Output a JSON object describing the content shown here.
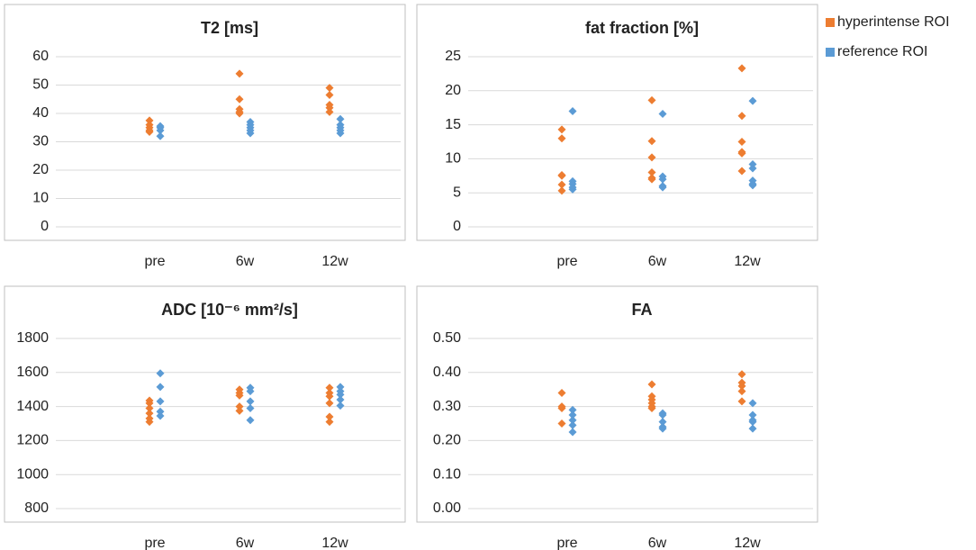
{
  "legend": [
    {
      "name": "hyperintense ROI",
      "color": "#ed7d31"
    },
    {
      "name": "reference ROI",
      "color": "#5b9bd5"
    }
  ],
  "chart_data": [
    {
      "type": "dot",
      "title": "T2 [ms]",
      "categories": [
        "pre",
        "6w",
        "12w"
      ],
      "ylim": [
        0,
        60
      ],
      "yticks": [
        0,
        10,
        20,
        30,
        40,
        50,
        60
      ],
      "grid": true,
      "series": [
        {
          "values": [
            [
              37.5,
              36,
              35,
              34,
              33.5
            ],
            [
              54,
              45,
              41.5,
              40.5,
              40
            ],
            [
              49,
              46.5,
              43,
              42,
              40.5
            ]
          ]
        },
        {
          "values": [
            [
              35.5,
              35,
              34,
              32
            ],
            [
              37,
              36,
              35,
              34,
              33
            ],
            [
              38,
              36,
              35,
              34,
              33
            ]
          ]
        }
      ]
    },
    {
      "type": "dot",
      "title": "fat fraction [%]",
      "categories": [
        "pre",
        "6w",
        "12w"
      ],
      "ylim": [
        0,
        25
      ],
      "yticks": [
        0,
        5,
        10,
        15,
        20,
        25
      ],
      "grid": true,
      "series": [
        {
          "values": [
            [
              14.3,
              13,
              7.6,
              7.5,
              6.2,
              5.3
            ],
            [
              18.6,
              12.6,
              10.2,
              8,
              7.2,
              7
            ],
            [
              23.3,
              16.3,
              12.5,
              11,
              10.8,
              8.2
            ]
          ]
        },
        {
          "values": [
            [
              17,
              6.7,
              6.3,
              5.8,
              5.5
            ],
            [
              16.6,
              7.4,
              7.0,
              6,
              5.8
            ],
            [
              18.5,
              9.2,
              8.6,
              6.8,
              6.3,
              6.1
            ]
          ]
        }
      ]
    },
    {
      "type": "dot",
      "title": "ADC [10⁻⁶ mm²/s]",
      "categories": [
        "pre",
        "6w",
        "12w"
      ],
      "ylim": [
        800,
        1800
      ],
      "yticks": [
        800,
        1000,
        1200,
        1400,
        1600,
        1800
      ],
      "grid": true,
      "series": [
        {
          "values": [
            [
              1435,
              1420,
              1390,
              1360,
              1330,
              1310
            ],
            [
              1500,
              1480,
              1465,
              1400,
              1375
            ],
            [
              1510,
              1480,
              1460,
              1420,
              1340,
              1310
            ]
          ]
        },
        {
          "values": [
            [
              1595,
              1515,
              1430,
              1370,
              1345
            ],
            [
              1510,
              1490,
              1430,
              1390,
              1320
            ],
            [
              1515,
              1490,
              1470,
              1440,
              1405
            ]
          ]
        }
      ]
    },
    {
      "type": "dot",
      "title": "FA",
      "categories": [
        "pre",
        "6w",
        "12w"
      ],
      "ylim": [
        0,
        0.5
      ],
      "yticks": [
        {
          "value": 0,
          "label": "0.00"
        },
        {
          "value": 0.1,
          "label": "0.10"
        },
        {
          "value": 0.2,
          "label": "0.20"
        },
        {
          "value": 0.3,
          "label": "0.30"
        },
        {
          "value": 0.4,
          "label": "0.40"
        },
        {
          "value": 0.5,
          "label": "0.50"
        }
      ],
      "grid": true,
      "series": [
        {
          "values": [
            [
              0.34,
              0.3,
              0.295,
              0.25
            ],
            [
              0.365,
              0.33,
              0.32,
              0.31,
              0.3,
              0.295
            ],
            [
              0.395,
              0.37,
              0.36,
              0.345,
              0.315
            ]
          ]
        },
        {
          "values": [
            [
              0.29,
              0.275,
              0.26,
              0.245,
              0.225
            ],
            [
              0.28,
              0.275,
              0.255,
              0.24,
              0.235
            ],
            [
              0.31,
              0.275,
              0.26,
              0.255,
              0.235
            ]
          ]
        }
      ]
    }
  ]
}
